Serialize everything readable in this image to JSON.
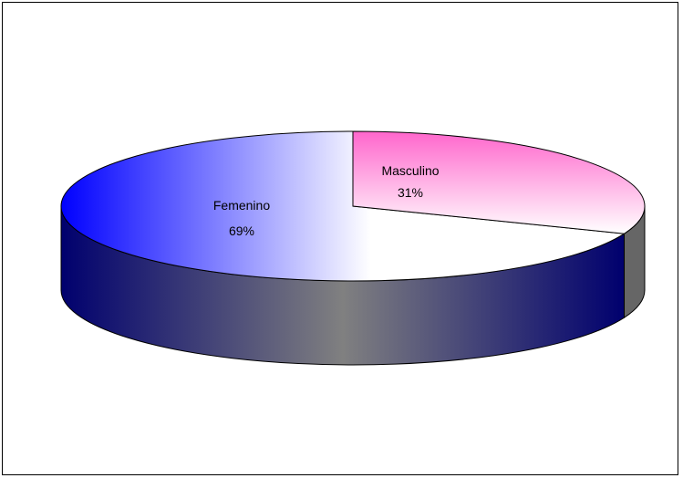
{
  "chart_data": {
    "type": "pie",
    "style": "3d",
    "categories": [
      "Femenino",
      "Masculino"
    ],
    "values": [
      69,
      31
    ],
    "value_format": "percent",
    "colors": {
      "Femenino": {
        "edge": "#0000ff",
        "face": "#ffffff",
        "side_dark": "#00006e",
        "side_mid": "#808080"
      },
      "Masculino": {
        "edge": "#ff66cc",
        "face": "#ffffff",
        "side": "#666666"
      }
    },
    "labels": [
      {
        "name": "Femenino",
        "pct": "69%"
      },
      {
        "name": "Masculino",
        "pct": "31%"
      }
    ],
    "legend": "none",
    "title": ""
  }
}
